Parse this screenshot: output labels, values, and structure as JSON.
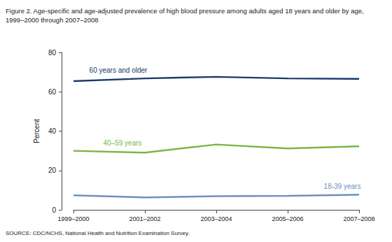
{
  "chart_data": {
    "type": "line",
    "title": "Figure 2. Age-specific and age-adjusted prevalence of high blood pressure among adults aged 18 years and older by age,\n1999–2000 through 2007–2008",
    "source": "SOURCE: CDC/NCHS, National Health and Nutrition Examination Survey.",
    "y_label": "Percent",
    "categories": [
      "1999–2000",
      "2001–2002",
      "2003–2004",
      "2005–2006",
      "2007–2008"
    ],
    "series": [
      {
        "name": "60 years and older",
        "color": "#1a3a6b",
        "values": [
          65.4,
          66.8,
          67.6,
          66.8,
          66.6
        ]
      },
      {
        "name": "40–59 years",
        "color": "#7ab547",
        "values": [
          30.0,
          29.1,
          33.2,
          31.2,
          32.3
        ]
      },
      {
        "name": "18-39 years",
        "color": "#7090c0",
        "values": [
          7.4,
          6.3,
          6.9,
          7.1,
          7.7
        ]
      }
    ],
    "ylim": [
      0,
      80
    ],
    "yticks": [
      0,
      20,
      40,
      60,
      80
    ],
    "grid": false,
    "line_style": "solid"
  }
}
